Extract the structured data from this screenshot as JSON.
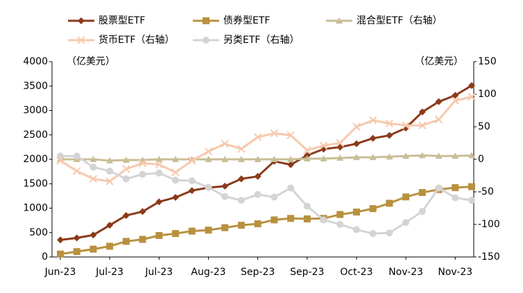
{
  "chart_data": {
    "type": "line",
    "y_label": "（亿美元）",
    "y2_label": "（亿美元）",
    "categories": [
      "Jun-23",
      null,
      null,
      "Jul-23",
      null,
      null,
      "Jul-23",
      null,
      null,
      "Aug-23",
      null,
      null,
      "Sep-23",
      null,
      null,
      "Sep-23",
      null,
      null,
      "Oct-23",
      null,
      null,
      "Nov-23",
      null,
      null,
      "Nov-23",
      null
    ],
    "ylim": [
      0,
      4000
    ],
    "yticks": [
      0,
      500,
      1000,
      1500,
      2000,
      2500,
      3000,
      3500,
      4000
    ],
    "y2lim": [
      -150,
      150
    ],
    "y2ticks": [
      -150,
      -100,
      -50,
      0,
      50,
      100,
      150
    ],
    "series": [
      {
        "name": "股票型ETF",
        "color": "#8b3a1a",
        "marker": "diamond",
        "values": [
          350,
          390,
          450,
          650,
          850,
          930,
          1130,
          1220,
          1360,
          1420,
          1450,
          1600,
          1650,
          1960,
          1890,
          2080,
          2210,
          2250,
          2320,
          2430,
          2490,
          2640,
          2970,
          3180,
          3310,
          3510
        ]
      },
      {
        "name": "债券型ETF",
        "color": "#b8913f",
        "marker": "square",
        "values": [
          60,
          110,
          160,
          220,
          320,
          360,
          440,
          480,
          530,
          550,
          600,
          650,
          680,
          760,
          790,
          780,
          790,
          870,
          920,
          990,
          1100,
          1230,
          1320,
          1380,
          1420,
          1440
        ]
      },
      {
        "name": "混合型ETF（右轴）",
        "color": "#c8be96",
        "marker": "triangle",
        "axis": "y2",
        "values": [
          0,
          0,
          0,
          -2,
          -1,
          -1,
          0,
          0,
          0,
          0,
          0,
          0,
          0,
          0,
          0,
          1,
          1,
          2,
          3,
          3,
          4,
          5,
          6,
          5,
          5,
          6
        ]
      },
      {
        "name": "货币ETF（右轴）",
        "color": "#f6c9ad",
        "marker": "x",
        "axis": "y2",
        "values": [
          -2,
          -18,
          -30,
          -34,
          -15,
          -6,
          -8,
          -20,
          -2,
          12,
          24,
          16,
          34,
          40,
          37,
          14,
          21,
          25,
          50,
          60,
          55,
          52,
          52,
          61,
          90,
          96
        ]
      },
      {
        "name": "另类ETF（右轴）",
        "color": "#d4d4d4",
        "marker": "circle",
        "axis": "y2",
        "values": [
          5,
          5,
          -12,
          -18,
          -30,
          -23,
          -21,
          -32,
          -33,
          -43,
          -57,
          -63,
          -54,
          -58,
          -44,
          -72,
          -93,
          -100,
          -108,
          -114,
          -113,
          -97,
          -80,
          -44,
          -59,
          -63
        ]
      }
    ]
  }
}
